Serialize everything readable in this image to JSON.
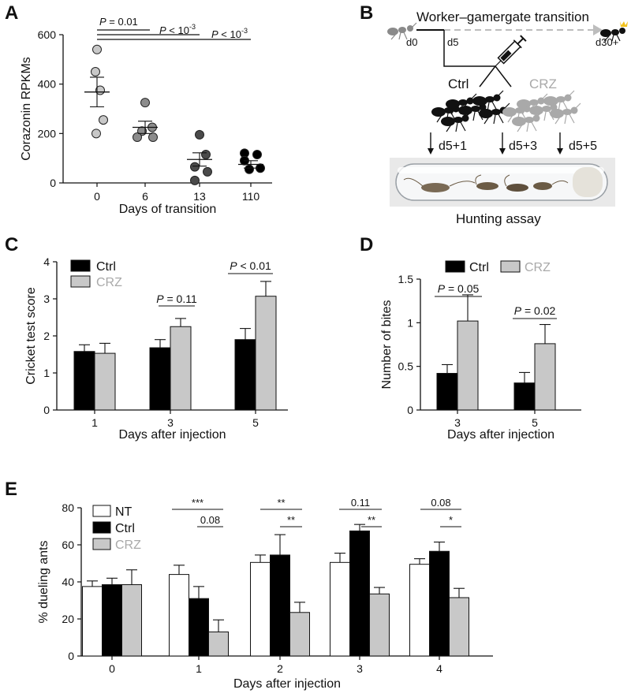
{
  "panels": {
    "A": "A",
    "B": "B",
    "C": "C",
    "D": "D",
    "E": "E"
  },
  "panelB": {
    "title": "Worker–gamergate transition",
    "d0": "d0",
    "d5": "d5",
    "d30": "d30+",
    "ctrl": "Ctrl",
    "crz": "CRZ",
    "t1": "d5+1",
    "t2": "d5+3",
    "t3": "d5+5",
    "caption": "Hunting assay",
    "colors": {
      "ctrl": "#111111",
      "crz": "#a9a9a9",
      "dashed": "#bdbdbd"
    }
  },
  "chart_data": [
    {
      "panel": "A",
      "type": "scatter",
      "ylabel": "Corazonin RPKMs",
      "xlabel": "Days of transition",
      "categories": [
        "0",
        "6",
        "13",
        "110"
      ],
      "ylim": [
        0,
        600
      ],
      "yticks": [
        0,
        200,
        400,
        600
      ],
      "points": [
        [
          540,
          450,
          375,
          255,
          200
        ],
        [
          325,
          225,
          210,
          185,
          185
        ],
        [
          195,
          115,
          65,
          45,
          10
        ],
        [
          120,
          115,
          90,
          60,
          55
        ]
      ],
      "mean": [
        368,
        225,
        95,
        75
      ],
      "sem": [
        60,
        25,
        27,
        15
      ],
      "point_colors": [
        "#c8c8c8",
        "#8c8c8c",
        "#4a4a4a",
        "#000000"
      ],
      "pvalues": [
        {
          "label": "P = 0.01",
          "from": 0,
          "to": 1
        },
        {
          "label": "P < 10",
          "sup": "-3",
          "from": 0,
          "to": 2
        },
        {
          "label": "P < 10",
          "sup": "-3",
          "from": 0,
          "to": 3
        }
      ]
    },
    {
      "panel": "C",
      "type": "bar",
      "ylabel": "Cricket test score",
      "xlabel": "Days after injection",
      "categories": [
        "1",
        "3",
        "5"
      ],
      "ylim": [
        0,
        4
      ],
      "yticks": [
        0,
        1,
        2,
        3,
        4
      ],
      "series": [
        {
          "name": "Ctrl",
          "values": [
            1.58,
            1.68,
            1.9
          ],
          "err": [
            0.18,
            0.22,
            0.3
          ],
          "color": "#000000"
        },
        {
          "name": "CRZ",
          "values": [
            1.53,
            2.25,
            3.07
          ],
          "err": [
            0.27,
            0.22,
            0.4
          ],
          "color": "#c8c8c8"
        }
      ],
      "pvalues": [
        {
          "label": "P = 0.11",
          "group": 1
        },
        {
          "label": "P < 0.01",
          "group": 2
        }
      ]
    },
    {
      "panel": "D",
      "type": "bar",
      "ylabel": "Number of bites",
      "xlabel": "Days after injection",
      "categories": [
        "3",
        "5"
      ],
      "ylim": [
        0,
        1.5
      ],
      "yticks": [
        0.0,
        0.5,
        1.0,
        1.5
      ],
      "series": [
        {
          "name": "Ctrl",
          "values": [
            0.42,
            0.31
          ],
          "err": [
            0.1,
            0.12
          ],
          "color": "#000000"
        },
        {
          "name": "CRZ",
          "values": [
            1.02,
            0.76
          ],
          "err": [
            0.3,
            0.22
          ],
          "color": "#c8c8c8"
        }
      ],
      "pvalues": [
        {
          "label": "P = 0.05",
          "group": 0
        },
        {
          "label": "P = 0.02",
          "group": 1
        }
      ]
    },
    {
      "panel": "E",
      "type": "bar",
      "ylabel": "% dueling ants",
      "xlabel": "Days after injection",
      "categories": [
        "0",
        "1",
        "2",
        "3",
        "4"
      ],
      "ylim": [
        0,
        80
      ],
      "yticks": [
        0,
        20,
        40,
        60,
        80
      ],
      "series": [
        {
          "name": "NT",
          "values": [
            37.5,
            44,
            50.5,
            50.5,
            49.5
          ],
          "err": [
            3,
            5,
            4,
            5,
            3
          ],
          "color": "#ffffff"
        },
        {
          "name": "Ctrl",
          "values": [
            38.5,
            31,
            54.5,
            67.5,
            56.5
          ],
          "err": [
            3.5,
            6.5,
            11,
            3.5,
            5
          ],
          "color": "#000000"
        },
        {
          "name": "CRZ",
          "values": [
            38.5,
            13,
            23.5,
            33.5,
            31.5
          ],
          "err": [
            8,
            6.5,
            5.5,
            3.5,
            5
          ],
          "color": "#c8c8c8"
        }
      ],
      "pvalues": [
        {
          "group": 1,
          "top": "***",
          "bottom": "0.08"
        },
        {
          "group": 2,
          "top": "**",
          "bottom": "**"
        },
        {
          "group": 3,
          "top": "0.11",
          "bottom": "**"
        },
        {
          "group": 4,
          "top": "0.08",
          "bottom": "*"
        }
      ]
    }
  ]
}
